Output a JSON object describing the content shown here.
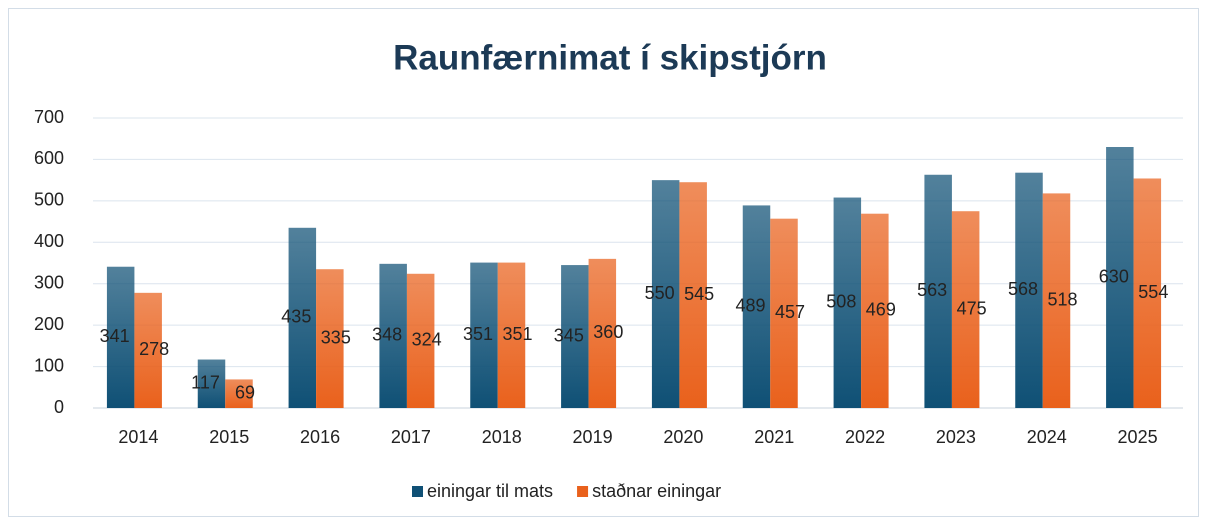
{
  "chart_data": {
    "type": "bar",
    "title": "Raunfærnimat í skipstjórn",
    "categories": [
      "2014",
      "2015",
      "2016",
      "2017",
      "2018",
      "2019",
      "2020",
      "2021",
      "2022",
      "2023",
      "2024",
      "2025"
    ],
    "series": [
      {
        "name": "einingar til mats",
        "color": "#0f5075",
        "values": [
          341,
          117,
          435,
          348,
          351,
          345,
          550,
          489,
          508,
          563,
          568,
          630
        ]
      },
      {
        "name": "staðnar einingar",
        "color": "#e9611c",
        "values": [
          278,
          69,
          335,
          324,
          351,
          360,
          545,
          457,
          469,
          475,
          518,
          554
        ]
      }
    ],
    "ylim": [
      0,
      700
    ],
    "yticks": [
      0,
      100,
      200,
      300,
      400,
      500,
      600,
      700
    ],
    "grid": true,
    "legend": "bottom"
  }
}
